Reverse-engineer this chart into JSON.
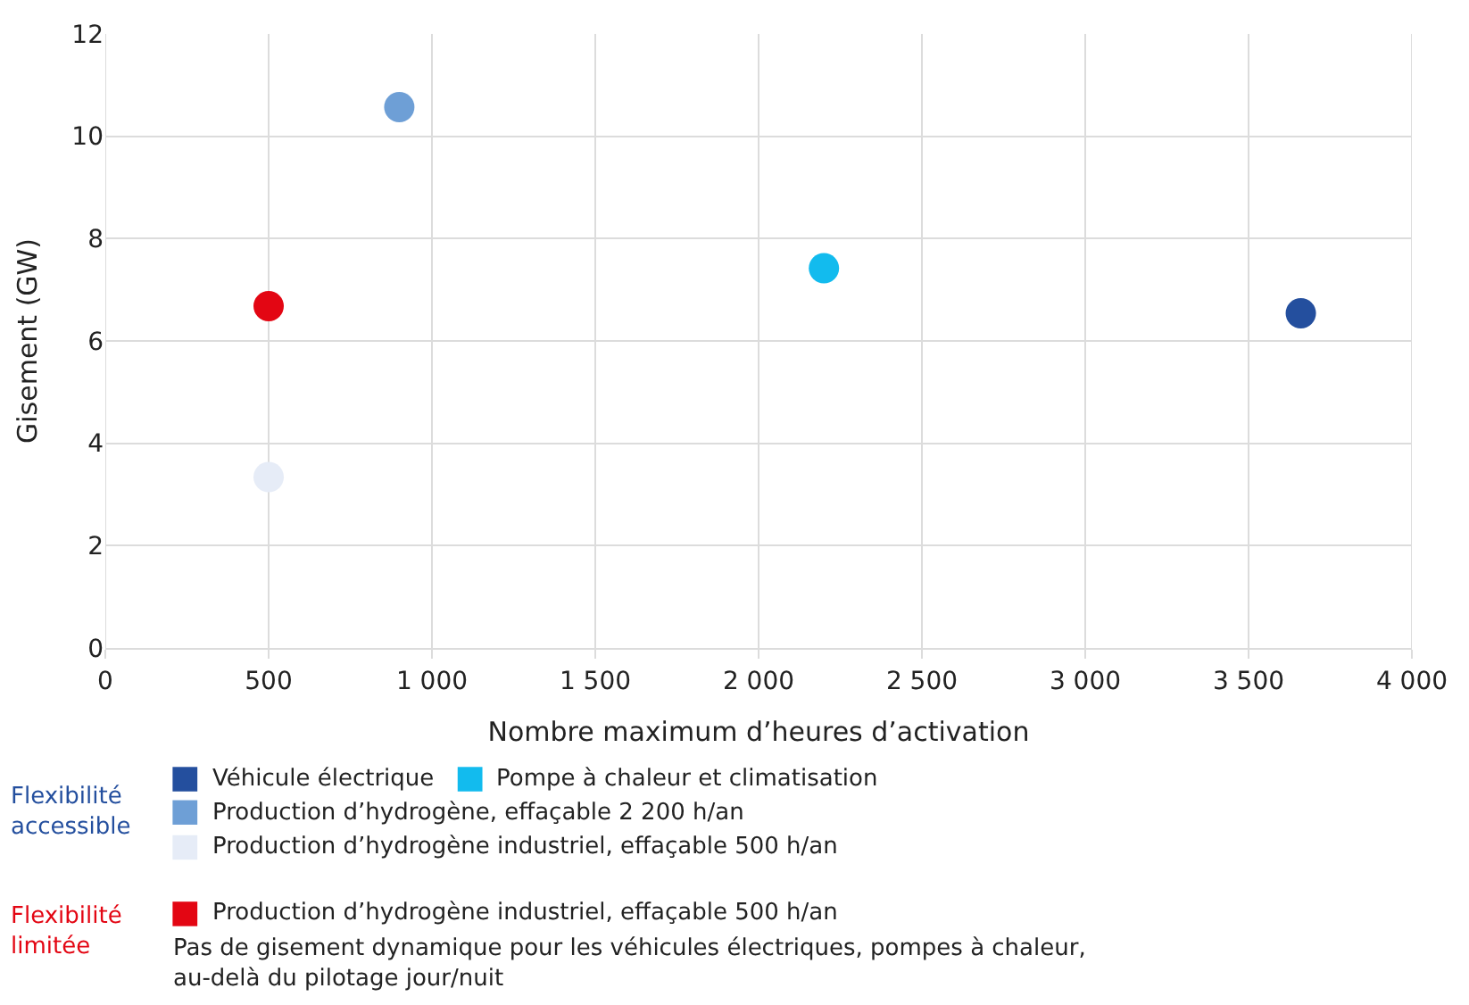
{
  "chart_data": {
    "type": "scatter",
    "xlabel": "Nombre maximum d’heures d’activation",
    "ylabel": "Gisement (GW)",
    "xlim": [
      0,
      4000
    ],
    "ylim": [
      0,
      12
    ],
    "xticks": [
      0,
      500,
      {
        "value": 1000,
        "label": "1 000"
      },
      {
        "value": 1500,
        "label": "1 500"
      },
      {
        "value": 2000,
        "label": "2 000"
      },
      {
        "value": 2500,
        "label": "2 500"
      },
      {
        "value": 3000,
        "label": "3 000"
      },
      {
        "value": 3500,
        "label": "3 500"
      },
      {
        "value": 4000,
        "label": "4 000"
      }
    ],
    "yticks": [
      0,
      2,
      4,
      6,
      8,
      10,
      12
    ],
    "grid": true,
    "marker": "circle",
    "legend": "bottom",
    "series": [
      {
        "name": "Véhicule électrique",
        "color": "#244f9e",
        "x": [
          3660
        ],
        "values": [
          6.54
        ]
      },
      {
        "name": "Pompe à chaleur et climatisation",
        "color": "#12bbee",
        "x": [
          2200
        ],
        "values": [
          7.42
        ]
      },
      {
        "name": "Production d’hydrogène, effaçable 2 200 h/an",
        "color": "#6e9fd6",
        "x": [
          900
        ],
        "values": [
          10.57
        ]
      },
      {
        "name": "Production d’hydrogène industriel, effaçable 500 h/an",
        "color": "#e6ecf7",
        "x": [
          500
        ],
        "values": [
          3.34
        ]
      },
      {
        "name": "Production d’hydrogène industriel, effaçable 500 h/an",
        "color": "#e30613",
        "x": [
          500
        ],
        "values": [
          6.68
        ]
      }
    ],
    "annotations": [
      "Flexibilité\naccessible",
      "Flexibilité\nlimitée",
      "Pas de gisement dynamique pour les véhicules électriques, pompes à chaleur,\nau-delà du pilotage jour/nuit"
    ]
  }
}
